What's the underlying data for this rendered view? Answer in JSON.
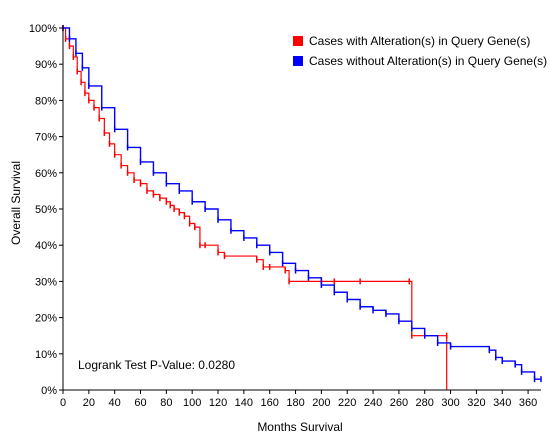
{
  "chart_data": {
    "type": "line",
    "xlabel": "Months Survival",
    "ylabel": "Overall Survival",
    "xlim": [
      0,
      370
    ],
    "ylim": [
      0,
      100
    ],
    "xticks": [
      "0",
      "20",
      "40",
      "60",
      "80",
      "100",
      "120",
      "140",
      "160",
      "180",
      "200",
      "220",
      "240",
      "260",
      "280",
      "300",
      "320",
      "340",
      "360"
    ],
    "yticks": [
      "0%",
      "10%",
      "20%",
      "30%",
      "40%",
      "50%",
      "60%",
      "70%",
      "80%",
      "90%",
      "100%"
    ],
    "legend": {
      "placement": "top-right",
      "items": [
        {
          "label": "Cases with Alteration(s) in Query Gene(s)",
          "color": "#ff0000"
        },
        {
          "label": "Cases without Alteration(s) in Query Gene(s)",
          "color": "#0000ff"
        }
      ]
    },
    "annotation": "Logrank Test P-Value: 0.0280",
    "series": [
      {
        "name": "Cases with Alteration(s) in Query Gene(s)",
        "color": "#ff0000",
        "points": [
          [
            0,
            100
          ],
          [
            2,
            97
          ],
          [
            5,
            95
          ],
          [
            8,
            92
          ],
          [
            11,
            88
          ],
          [
            14,
            85
          ],
          [
            17,
            82
          ],
          [
            20,
            80
          ],
          [
            24,
            78
          ],
          [
            28,
            75
          ],
          [
            32,
            71
          ],
          [
            36,
            68
          ],
          [
            40,
            65
          ],
          [
            45,
            62
          ],
          [
            50,
            60
          ],
          [
            55,
            58
          ],
          [
            60,
            57
          ],
          [
            65,
            55
          ],
          [
            70,
            54
          ],
          [
            75,
            53
          ],
          [
            80,
            52
          ],
          [
            83,
            51
          ],
          [
            86,
            50
          ],
          [
            90,
            49
          ],
          [
            94,
            48
          ],
          [
            98,
            46
          ],
          [
            102,
            45
          ],
          [
            106,
            40
          ],
          [
            110,
            40
          ],
          [
            120,
            38
          ],
          [
            125,
            37
          ],
          [
            150,
            36
          ],
          [
            155,
            34
          ],
          [
            160,
            34
          ],
          [
            172,
            33
          ],
          [
            175,
            30
          ],
          [
            200,
            30
          ],
          [
            210,
            30
          ],
          [
            230,
            30
          ],
          [
            268,
            30
          ],
          [
            270,
            15
          ],
          [
            297,
            15
          ],
          [
            297,
            0
          ]
        ]
      },
      {
        "name": "Cases without Alteration(s) in Query Gene(s)",
        "color": "#0000ff",
        "points": [
          [
            0,
            100
          ],
          [
            5,
            97
          ],
          [
            10,
            93
          ],
          [
            15,
            89
          ],
          [
            20,
            84
          ],
          [
            30,
            78
          ],
          [
            40,
            72
          ],
          [
            50,
            67
          ],
          [
            60,
            63
          ],
          [
            70,
            60
          ],
          [
            80,
            57
          ],
          [
            90,
            55
          ],
          [
            100,
            52
          ],
          [
            110,
            50
          ],
          [
            120,
            47
          ],
          [
            130,
            44
          ],
          [
            140,
            42
          ],
          [
            150,
            40
          ],
          [
            160,
            38
          ],
          [
            170,
            35
          ],
          [
            180,
            33
          ],
          [
            190,
            31
          ],
          [
            200,
            29
          ],
          [
            210,
            27
          ],
          [
            220,
            25
          ],
          [
            230,
            23
          ],
          [
            240,
            22
          ],
          [
            250,
            21
          ],
          [
            260,
            19
          ],
          [
            270,
            17
          ],
          [
            280,
            15
          ],
          [
            290,
            13
          ],
          [
            300,
            12
          ],
          [
            330,
            11
          ],
          [
            335,
            9
          ],
          [
            340,
            8
          ],
          [
            350,
            7
          ],
          [
            355,
            5
          ],
          [
            365,
            3
          ],
          [
            370,
            3
          ]
        ]
      }
    ]
  }
}
